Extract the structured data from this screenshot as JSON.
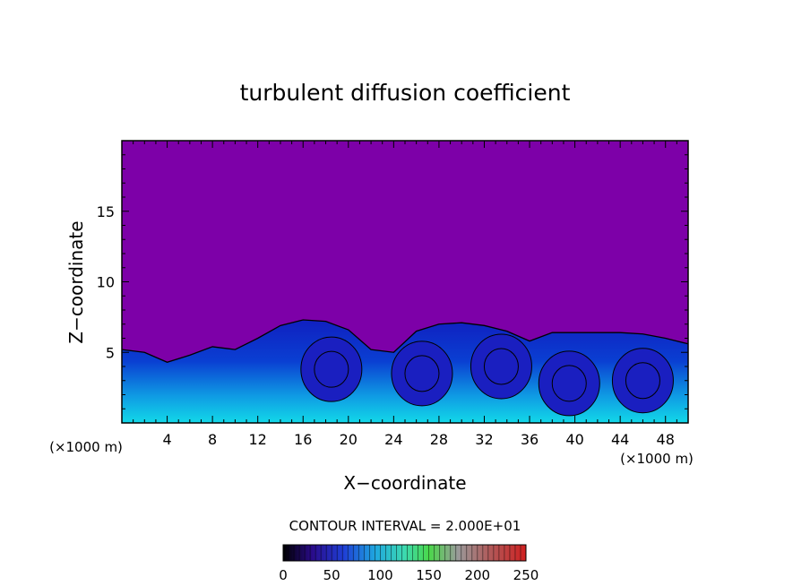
{
  "chart_data": {
    "type": "heatmap",
    "title": "turbulent diffusion coefficient",
    "xlabel": "X−coordinate",
    "ylabel": "Z−coordinate",
    "x_unit_left": "(×1000 m)",
    "x_unit_right": "(×1000 m)",
    "xlim": [
      0,
      50
    ],
    "ylim": [
      0,
      20
    ],
    "xticks": [
      4,
      8,
      12,
      16,
      20,
      24,
      28,
      32,
      36,
      40,
      44,
      48
    ],
    "yticks": [
      5,
      10,
      15
    ],
    "contour_interval_text": "CONTOUR INTERVAL = 2.000E+01",
    "colorbar": {
      "min": 0,
      "max": 250,
      "ticks": [
        0,
        50,
        100,
        150,
        200,
        250
      ]
    },
    "background_color": "#7d00a8",
    "turbulent_layer_top": [
      [
        0,
        5.2
      ],
      [
        2,
        5.0
      ],
      [
        4,
        4.3
      ],
      [
        6,
        4.8
      ],
      [
        8,
        5.4
      ],
      [
        10,
        5.2
      ],
      [
        12,
        6.0
      ],
      [
        14,
        6.9
      ],
      [
        16,
        7.3
      ],
      [
        18,
        7.2
      ],
      [
        20,
        6.6
      ],
      [
        22,
        5.2
      ],
      [
        24,
        5.0
      ],
      [
        26,
        6.5
      ],
      [
        28,
        7.0
      ],
      [
        30,
        7.1
      ],
      [
        32,
        6.9
      ],
      [
        34,
        6.5
      ],
      [
        36,
        5.8
      ],
      [
        38,
        6.4
      ],
      [
        40,
        6.4
      ],
      [
        42,
        6.4
      ],
      [
        44,
        6.4
      ],
      [
        46,
        6.3
      ],
      [
        48,
        6.0
      ],
      [
        50,
        5.6
      ]
    ],
    "eddies": [
      {
        "x": 18.5,
        "z": 3.8
      },
      {
        "x": 26.5,
        "z": 3.5
      },
      {
        "x": 33.5,
        "z": 4.0
      },
      {
        "x": 39.5,
        "z": 2.8
      },
      {
        "x": 46.0,
        "z": 3.0
      }
    ]
  }
}
